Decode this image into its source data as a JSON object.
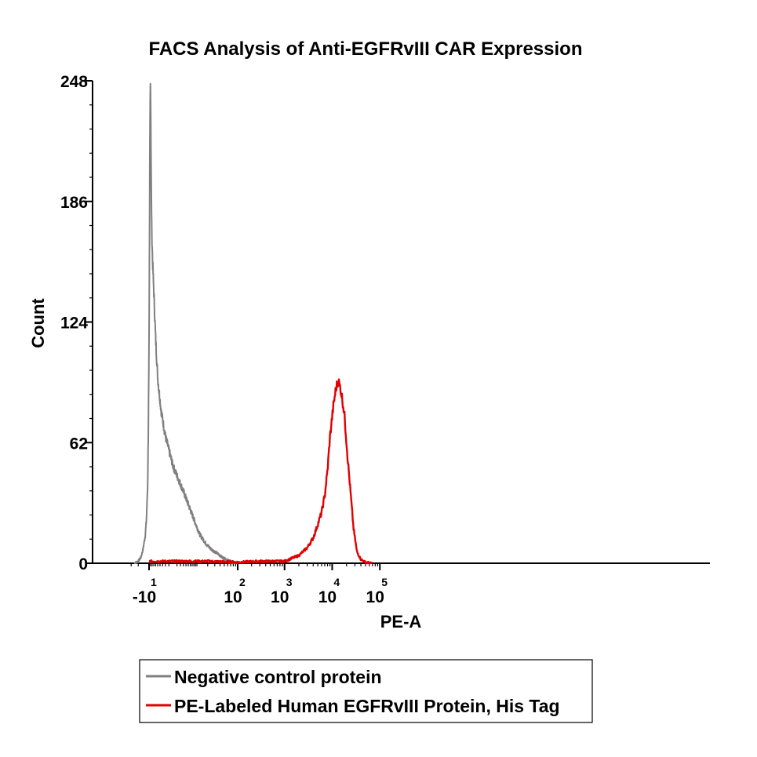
{
  "chart_data": {
    "type": "line",
    "title": "FACS Analysis of Anti-EGFRvIII CAR Expression",
    "xlabel": "PE-A",
    "ylabel": "Count",
    "xscale": "biexponential",
    "ylim": [
      0,
      248
    ],
    "y_ticks": [
      {
        "label": "0",
        "value": 0
      },
      {
        "label": "62",
        "value": 62
      },
      {
        "label": "124",
        "value": 124
      },
      {
        "label": "186",
        "value": 186
      },
      {
        "label": "248",
        "value": 248
      }
    ],
    "x_ticks": [
      {
        "base": "-10",
        "exponent": "1",
        "value": -10
      },
      {
        "base": "10",
        "exponent": "2",
        "value": 100
      },
      {
        "base": "10",
        "exponent": "3",
        "value": 1000
      },
      {
        "base": "10",
        "exponent": "4",
        "value": 10000
      },
      {
        "base": "10",
        "exponent": "5",
        "value": 100000
      }
    ],
    "legend_position": "bottom",
    "series": [
      {
        "name": "Negative control protein",
        "color": "#808080",
        "points": [
          [
            -25,
            0
          ],
          [
            -20,
            1
          ],
          [
            -17,
            3
          ],
          [
            -15,
            7
          ],
          [
            -13,
            14
          ],
          [
            -12,
            22
          ],
          [
            -11,
            40
          ],
          [
            -10.5,
            70
          ],
          [
            -10,
            110
          ],
          [
            -9.7,
            160
          ],
          [
            -9.5,
            200
          ],
          [
            -9.3,
            235
          ],
          [
            -9.1,
            248
          ],
          [
            -8.9,
            240
          ],
          [
            -8.6,
            200
          ],
          [
            -8.2,
            170
          ],
          [
            -7.7,
            155
          ],
          [
            -7,
            140
          ],
          [
            -6,
            115
          ],
          [
            -5,
            95
          ],
          [
            -3.5,
            78
          ],
          [
            -2,
            65
          ],
          [
            0,
            50
          ],
          [
            3,
            37
          ],
          [
            7,
            25
          ],
          [
            12,
            15
          ],
          [
            18,
            10
          ],
          [
            25,
            7
          ],
          [
            35,
            5
          ],
          [
            45,
            3
          ],
          [
            55,
            2
          ],
          [
            70,
            1
          ],
          [
            90,
            0
          ]
        ]
      },
      {
        "name": "PE-Labeled Human EGFRvIII Protein, His Tag",
        "color": "#e00000",
        "points": [
          [
            -10,
            1
          ],
          [
            0,
            1
          ],
          [
            20,
            1
          ],
          [
            100,
            0.5
          ],
          [
            300,
            1
          ],
          [
            1000,
            1
          ],
          [
            2000,
            4
          ],
          [
            3000,
            8
          ],
          [
            4000,
            13
          ],
          [
            5000,
            20
          ],
          [
            6000,
            26
          ],
          [
            7000,
            35
          ],
          [
            8000,
            48
          ],
          [
            9000,
            65
          ],
          [
            10500,
            80
          ],
          [
            12000,
            90
          ],
          [
            13500,
            94
          ],
          [
            15500,
            88
          ],
          [
            18000,
            77
          ],
          [
            21000,
            55
          ],
          [
            24000,
            38
          ],
          [
            28000,
            18
          ],
          [
            33000,
            6
          ],
          [
            40000,
            2
          ],
          [
            50000,
            0.5
          ],
          [
            70000,
            0
          ]
        ]
      }
    ]
  }
}
